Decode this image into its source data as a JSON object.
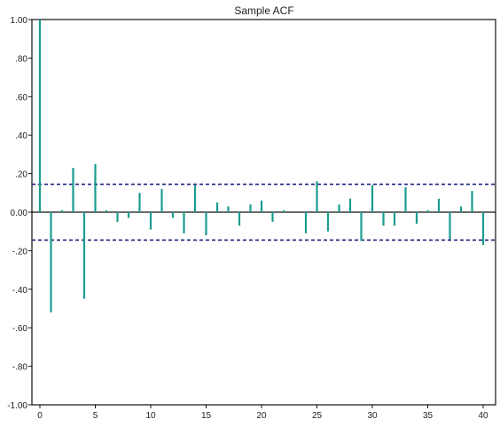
{
  "chart_data": {
    "type": "bar",
    "title": "Sample ACF",
    "xlabel": "",
    "ylabel": "",
    "xlim": [
      0,
      41
    ],
    "ylim": [
      -1.0,
      1.0
    ],
    "xticks": [
      0,
      5,
      10,
      15,
      20,
      25,
      30,
      35,
      40
    ],
    "yticks": [
      1.0,
      0.8,
      0.6,
      0.4,
      0.2,
      0.0,
      -0.2,
      -0.4,
      -0.6,
      -0.8,
      -1.0
    ],
    "ytick_labels": [
      "1.00",
      ".80",
      ".60",
      ".40",
      ".20",
      "0.00",
      "-.20",
      "-.40",
      "-.60",
      "-.80",
      "-1.00"
    ],
    "confidence_band": [
      0.145,
      -0.145
    ],
    "grid": false,
    "colors": {
      "bars": "#1a9c8f",
      "band": "#1a237e",
      "axes": "#111111"
    },
    "lags": [
      0,
      1,
      2,
      3,
      4,
      5,
      6,
      7,
      8,
      9,
      10,
      11,
      12,
      13,
      14,
      15,
      16,
      17,
      18,
      19,
      20,
      21,
      22,
      23,
      24,
      25,
      26,
      27,
      28,
      29,
      30,
      31,
      32,
      33,
      34,
      35,
      36,
      37,
      38,
      39,
      40
    ],
    "values": [
      1.0,
      -0.52,
      0.01,
      0.23,
      -0.45,
      0.25,
      0.01,
      -0.05,
      -0.03,
      0.1,
      -0.09,
      0.12,
      -0.03,
      -0.11,
      0.14,
      -0.12,
      0.05,
      0.03,
      -0.07,
      0.04,
      0.06,
      -0.05,
      0.01,
      0.0,
      -0.11,
      0.16,
      -0.1,
      0.04,
      0.07,
      -0.15,
      0.14,
      -0.07,
      -0.07,
      0.13,
      -0.06,
      0.01,
      0.07,
      -0.14,
      0.03,
      0.11,
      -0.17
    ]
  }
}
